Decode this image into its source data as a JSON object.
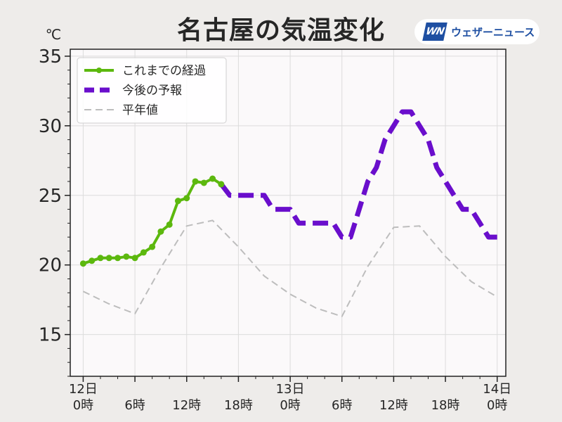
{
  "title": "名古屋の気温変化",
  "logo": {
    "mark": "WN",
    "text": "ウェザーニュース"
  },
  "colors": {
    "observed": "#5cb80e",
    "forecast": "#6a0ecc",
    "normal": "#bdbdbd",
    "background": "#eeecea",
    "plot_background": "#fbf9fa",
    "grid": "#dcdcdc"
  },
  "chart_data": {
    "type": "line",
    "title": "名古屋の気温変化",
    "ylabel": "℃",
    "ylim": [
      12,
      35.5
    ],
    "yticks": [
      15,
      20,
      25,
      30,
      35
    ],
    "xlim": [
      -1.5,
      49
    ],
    "xtick_labels": [
      {
        "x": 0,
        "label": [
          "12日",
          "0時"
        ]
      },
      {
        "x": 6,
        "label": [
          "",
          "6時"
        ]
      },
      {
        "x": 12,
        "label": [
          "",
          "12時"
        ]
      },
      {
        "x": 18,
        "label": [
          "",
          "18時"
        ]
      },
      {
        "x": 24,
        "label": [
          "13日",
          "0時"
        ]
      },
      {
        "x": 30,
        "label": [
          "",
          "6時"
        ]
      },
      {
        "x": 36,
        "label": [
          "",
          "12時"
        ]
      },
      {
        "x": 42,
        "label": [
          "",
          "18時"
        ]
      },
      {
        "x": 48,
        "label": [
          "14日",
          "0時"
        ]
      }
    ],
    "grid": true,
    "legend_position": "top-left",
    "series": [
      {
        "name": "これまでの経過",
        "key": "observed",
        "style": "solid-marker",
        "x": [
          0,
          1,
          2,
          3,
          4,
          5,
          6,
          7,
          8,
          9,
          10,
          11,
          12,
          13,
          14,
          15,
          16
        ],
        "y": [
          20.1,
          20.3,
          20.5,
          20.5,
          20.5,
          20.6,
          20.5,
          20.9,
          21.3,
          22.4,
          22.9,
          24.6,
          24.8,
          26.0,
          25.9,
          26.2,
          25.8
        ]
      },
      {
        "name": "今後の予報",
        "key": "forecast",
        "style": "dashed-thick",
        "x": [
          16,
          17,
          18,
          19,
          20,
          21,
          22,
          23,
          24,
          25,
          26,
          27,
          28,
          29,
          30,
          31,
          32,
          33,
          34,
          35,
          36,
          37,
          38,
          39,
          40,
          41,
          42,
          43,
          44,
          45,
          46,
          47,
          48
        ],
        "y": [
          25.8,
          25,
          25,
          25,
          25,
          25,
          24,
          24,
          24,
          23,
          23,
          23,
          23,
          23,
          22,
          22,
          24,
          26,
          27,
          29,
          30,
          31,
          31,
          30,
          29,
          27,
          26,
          25,
          24,
          24,
          23,
          22,
          22
        ]
      },
      {
        "name": "平年値",
        "key": "normal",
        "style": "dashed-thin",
        "x": [
          0,
          3,
          6,
          9,
          12,
          15,
          18,
          21,
          24,
          27,
          30,
          33,
          36,
          39,
          42,
          45,
          48
        ],
        "y": [
          18.1,
          17.2,
          16.5,
          19.8,
          22.8,
          23.2,
          21.3,
          19.2,
          17.9,
          16.9,
          16.3,
          19.9,
          22.7,
          22.8,
          20.6,
          18.8,
          17.7
        ]
      }
    ]
  }
}
